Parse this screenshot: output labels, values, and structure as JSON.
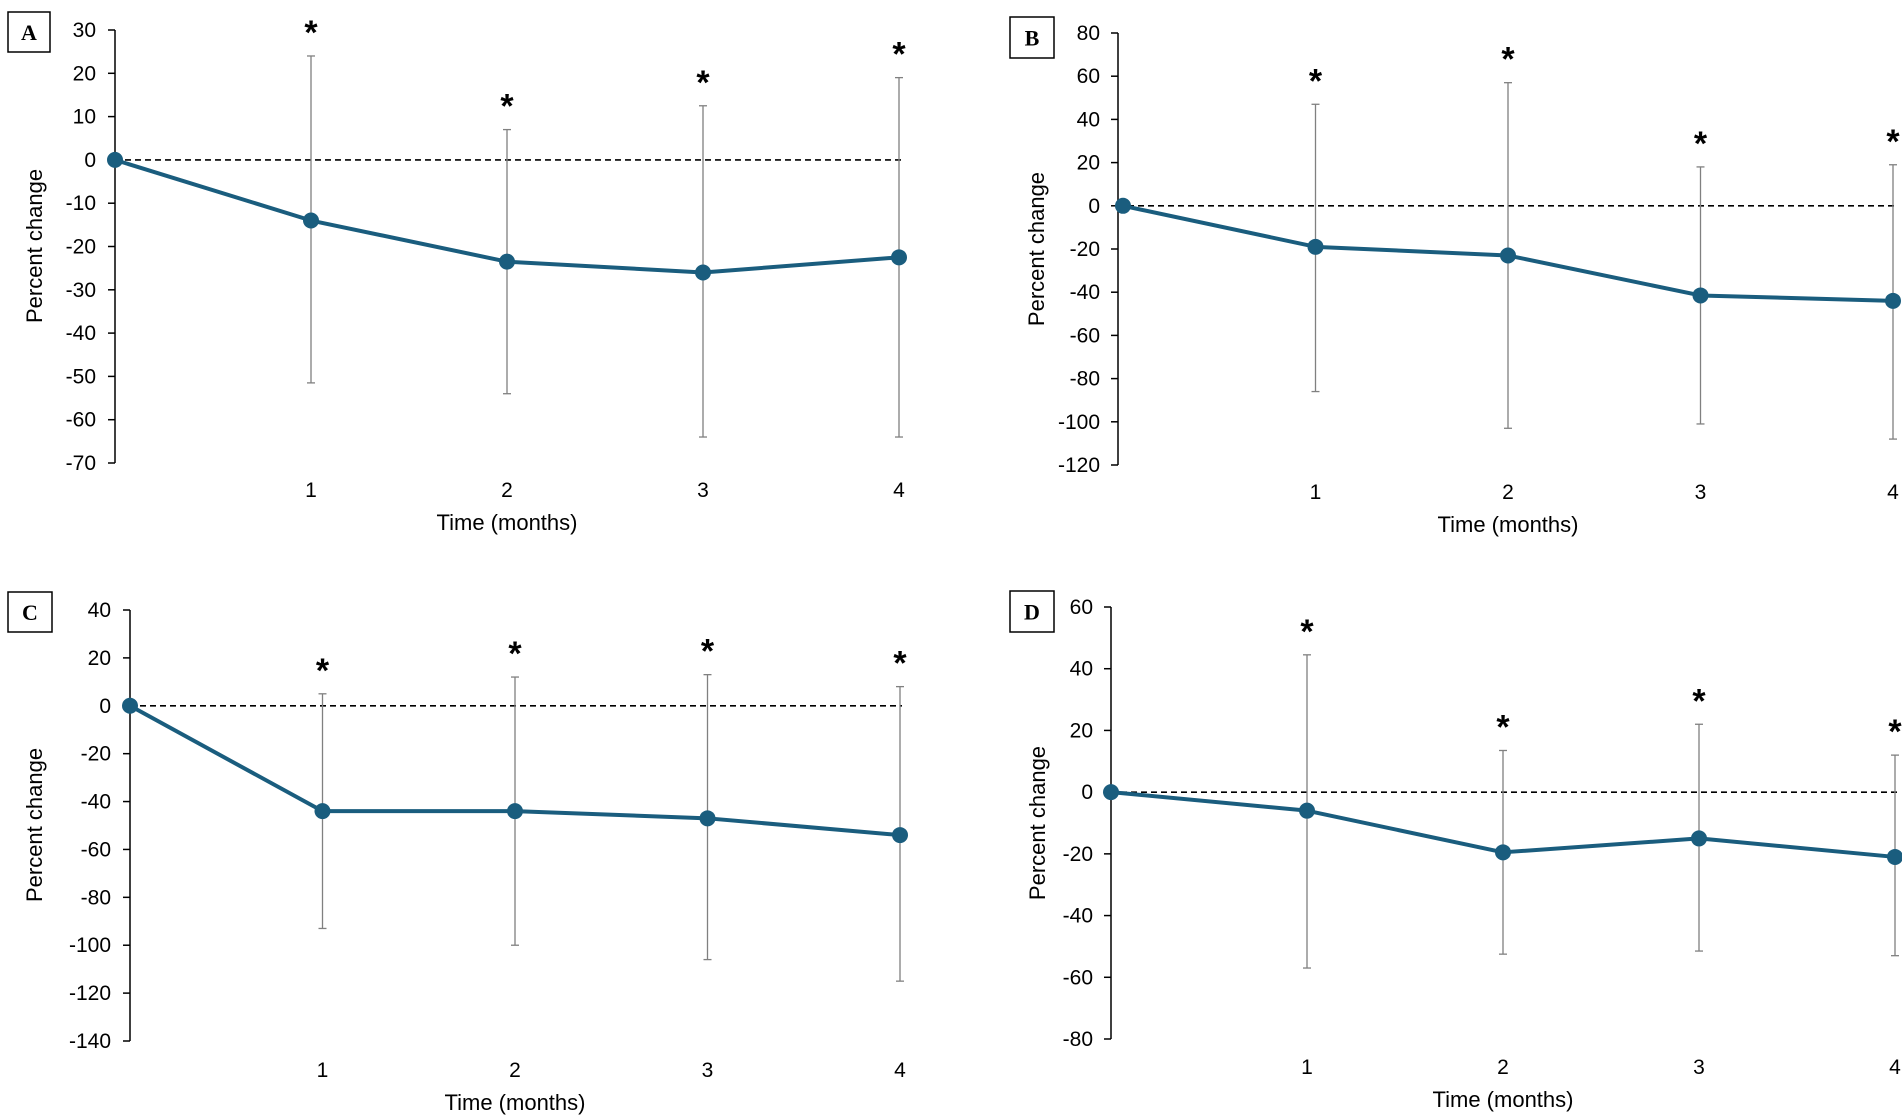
{
  "chart_data": [
    {
      "type": "line",
      "panel": "A",
      "xlabel": "Time (months)",
      "ylabel": "Percent change",
      "ylim": [
        -70,
        30
      ],
      "ytick_step": 10,
      "x": [
        0,
        1,
        2,
        3,
        4
      ],
      "xtick_labels": [
        "1",
        "2",
        "3",
        "4"
      ],
      "values": [
        0,
        -14,
        -23.5,
        -26,
        -22.5
      ],
      "error_upper": [
        null,
        24,
        7,
        12.5,
        19
      ],
      "error_lower": [
        null,
        -51.5,
        -54,
        -64,
        -64
      ],
      "significance": [
        "",
        "*",
        "*",
        "*",
        "*"
      ],
      "reference_line": 0,
      "color": "#1a5d7e"
    },
    {
      "type": "line",
      "panel": "B",
      "xlabel": "Time (months)",
      "ylabel": "Percent change",
      "ylim": [
        -120,
        80
      ],
      "ytick_step": 20,
      "x": [
        0,
        1,
        2,
        3,
        4
      ],
      "xtick_labels": [
        "1",
        "2",
        "3",
        "4"
      ],
      "values": [
        0,
        -19,
        -23,
        -41.5,
        -44
      ],
      "error_upper": [
        null,
        47,
        57,
        18,
        19
      ],
      "error_lower": [
        null,
        -86,
        -103,
        -101,
        -108
      ],
      "significance": [
        "",
        "*",
        "*",
        "*",
        "*"
      ],
      "reference_line": 0,
      "color": "#1a5d7e"
    },
    {
      "type": "line",
      "panel": "C",
      "xlabel": "Time (months)",
      "ylabel": "Percent change",
      "ylim": [
        -140,
        40
      ],
      "ytick_step": 20,
      "x": [
        0,
        1,
        2,
        3,
        4
      ],
      "xtick_labels": [
        "1",
        "2",
        "3",
        "4"
      ],
      "values": [
        0,
        -44,
        -44,
        -47,
        -54
      ],
      "error_upper": [
        null,
        5,
        12,
        13,
        8
      ],
      "error_lower": [
        null,
        -93,
        -100,
        -106,
        -115
      ],
      "significance": [
        "",
        "*",
        "*",
        "*",
        "*"
      ],
      "reference_line": 0,
      "color": "#1a5d7e"
    },
    {
      "type": "line",
      "panel": "D",
      "xlabel": "Time (months)",
      "ylabel": "Percent change",
      "ylim": [
        -80,
        60
      ],
      "ytick_step": 20,
      "x": [
        0,
        1,
        2,
        3,
        4
      ],
      "xtick_labels": [
        "1",
        "2",
        "3",
        "4"
      ],
      "values": [
        0,
        -6,
        -19.5,
        -15,
        -21
      ],
      "error_upper": [
        null,
        44.5,
        13.5,
        22,
        12
      ],
      "error_lower": [
        null,
        -57,
        -52.5,
        -51.5,
        -53
      ],
      "significance": [
        "",
        "*",
        "*",
        "*",
        "*"
      ],
      "reference_line": 0,
      "color": "#1a5d7e"
    }
  ]
}
